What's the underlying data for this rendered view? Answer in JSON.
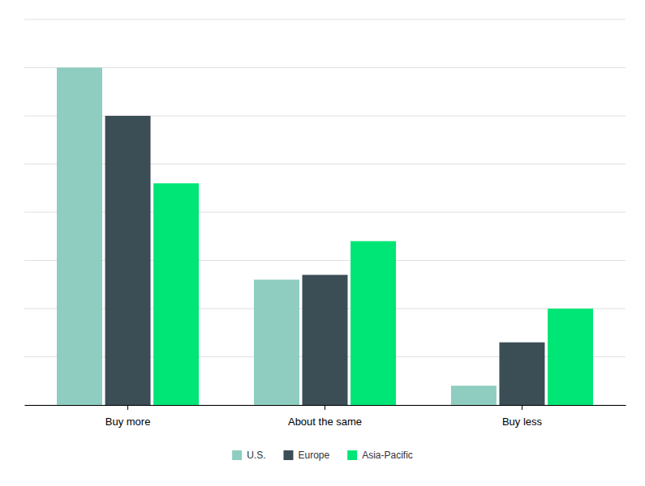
{
  "chart_data": {
    "type": "bar",
    "categories": [
      "Buy more",
      "About the same",
      "Buy less"
    ],
    "series": [
      {
        "name": "U.S.",
        "color": "#8ecdc0",
        "values": [
          70,
          26,
          4
        ]
      },
      {
        "name": "Europe",
        "color": "#3b4d55",
        "values": [
          60,
          27,
          13
        ]
      },
      {
        "name": "Asia-Pacific",
        "color": "#00e676",
        "values": [
          46,
          34,
          20
        ]
      }
    ],
    "ylim": [
      0,
      80
    ],
    "yticks": [
      0,
      10,
      20,
      30,
      40,
      50,
      60,
      70,
      80
    ],
    "grid": true,
    "legend": "bottom",
    "tick_labels": "x"
  }
}
